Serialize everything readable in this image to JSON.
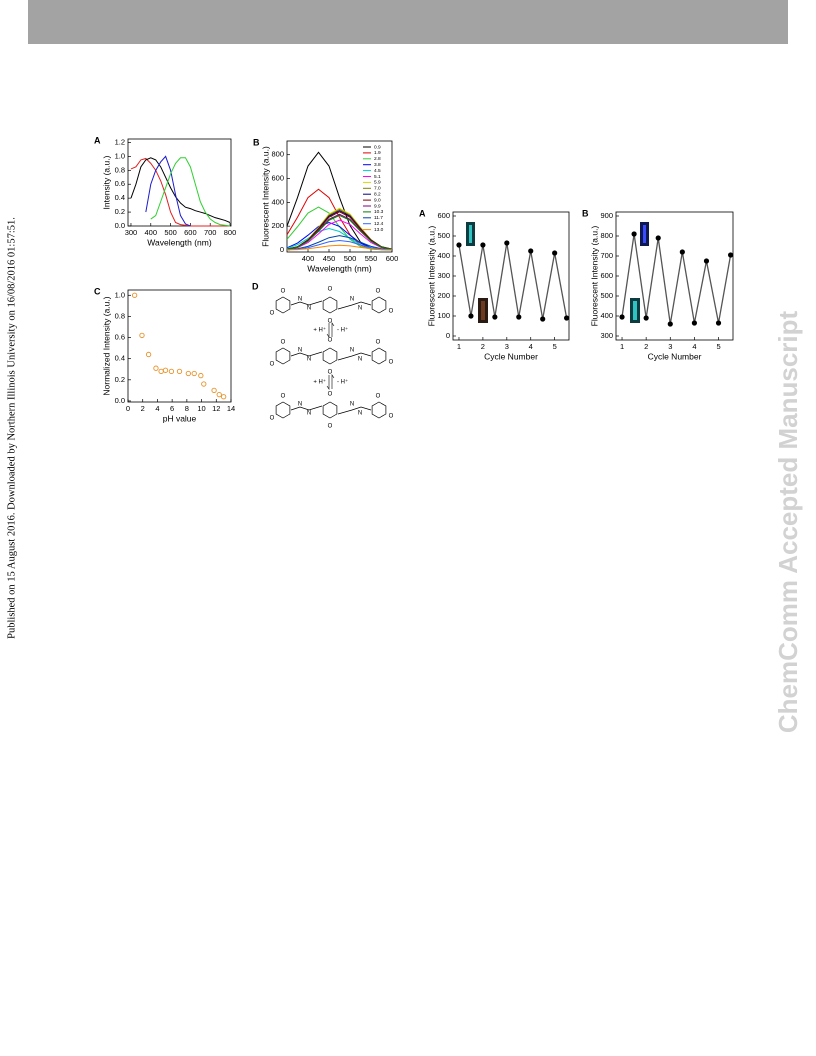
{
  "side_text": "Published on 15 August 2016. Downloaded by Northern Illinois University on 16/08/2016 01:57:51.",
  "watermark": "ChemComm Accepted Manuscript",
  "chart_data": [
    {
      "type": "line",
      "label": "A",
      "xlabel": "Wavelength (nm)",
      "ylabel": "Intensity (a.u.)",
      "xlim": [
        285,
        805
      ],
      "ylim": [
        0,
        1.25
      ],
      "xticks": [
        300,
        400,
        500,
        600,
        700,
        800
      ],
      "yticks": [
        {
          "value": 0,
          "label": "0.0"
        },
        0.2,
        0.4,
        0.6,
        0.8,
        {
          "value": 1,
          "label": "1.0"
        },
        1.2
      ],
      "x": [
        300,
        325,
        350,
        375,
        400,
        425,
        450,
        475,
        500,
        525,
        550,
        575,
        600,
        625,
        650,
        675,
        700,
        725,
        750,
        775,
        800
      ],
      "series": [
        {
          "color": "#e02020",
          "values": [
            0.82,
            0.85,
            0.95,
            0.97,
            0.9,
            0.8,
            0.65,
            0.45,
            0.2,
            0.05,
            0.02,
            0.01,
            0,
            0,
            0,
            0,
            0,
            0,
            0,
            0,
            0
          ]
        },
        {
          "color": "#000000",
          "values": [
            0.4,
            0.6,
            0.85,
            0.95,
            0.98,
            0.95,
            0.85,
            0.7,
            0.55,
            0.42,
            0.33,
            0.27,
            0.25,
            0.22,
            0.2,
            0.18,
            0.15,
            0.12,
            0.1,
            0.08,
            0.05
          ]
        },
        {
          "color": "#1a1ad0",
          "values": [
            null,
            null,
            null,
            0.2,
            0.6,
            0.8,
            0.92,
            1.0,
            0.8,
            0.45,
            0.15,
            0.03,
            0,
            null,
            null,
            null,
            null,
            null,
            null,
            null,
            null
          ]
        },
        {
          "color": "#30d030",
          "values": [
            null,
            null,
            null,
            null,
            0.1,
            0.15,
            0.35,
            0.55,
            0.75,
            0.9,
            0.98,
            0.98,
            0.85,
            0.6,
            0.35,
            0.2,
            0.1,
            0.05,
            0.02,
            0.01,
            0
          ]
        }
      ]
    },
    {
      "type": "line",
      "label": "B",
      "xlabel": "Wavelength (nm)",
      "ylabel": "Fluorescent Intensity (a.u.)",
      "xlim": [
        350,
        600
      ],
      "ylim": [
        -17,
        915
      ],
      "legend": "upper right",
      "xticks": [
        400,
        450,
        500,
        550,
        600
      ],
      "yticks": [
        0,
        200,
        400,
        600,
        800
      ],
      "x": [
        350,
        375,
        400,
        425,
        450,
        475,
        500,
        525,
        550,
        575,
        600
      ],
      "series": [
        {
          "name": "0.9",
          "color": "#000000",
          "values": [
            200,
            440,
            705,
            820,
            705,
            440,
            205,
            66,
            16,
            5,
            2
          ]
        },
        {
          "name": "1.9",
          "color": "#e00000",
          "values": [
            128,
            275,
            440,
            510,
            440,
            275,
            128,
            41,
            10,
            3,
            1
          ]
        },
        {
          "name": "2.8",
          "color": "#33cc33",
          "values": [
            90,
            195,
            310,
            360,
            310,
            195,
            90,
            29,
            7,
            2,
            1
          ]
        },
        {
          "name": "3.8",
          "color": "#0000ff",
          "values": [
            18,
            58,
            124,
            198,
            230,
            198,
            124,
            58,
            18,
            5,
            1
          ]
        },
        {
          "name": "4.5",
          "color": "#00cccc",
          "values": [
            14,
            45,
            97,
            155,
            180,
            155,
            97,
            45,
            14,
            4,
            1
          ]
        },
        {
          "name": "5.1",
          "color": "#ff00ff",
          "values": [
            5,
            20,
            62,
            135,
            215,
            250,
            215,
            135,
            62,
            20,
            5
          ]
        },
        {
          "name": "5.9",
          "color": "#d8d800",
          "values": [
            7,
            28,
            88,
            189,
            301,
            350,
            301,
            189,
            88,
            28,
            7
          ]
        },
        {
          "name": "7.0",
          "color": "#808000",
          "values": [
            7,
            27,
            85,
            184,
            292,
            340,
            292,
            184,
            85,
            27,
            7
          ]
        },
        {
          "name": "8.2",
          "color": "#000080",
          "values": [
            7,
            26,
            83,
            178,
            284,
            330,
            284,
            178,
            83,
            26,
            7
          ]
        },
        {
          "name": "9.0",
          "color": "#800000",
          "values": [
            6,
            26,
            80,
            173,
            275,
            320,
            275,
            173,
            80,
            26,
            6
          ]
        },
        {
          "name": "9.9",
          "color": "#800080",
          "values": [
            6,
            24,
            75,
            162,
            258,
            300,
            258,
            162,
            75,
            24,
            6
          ]
        },
        {
          "name": "10.3",
          "color": "#008000",
          "values": [
            6,
            23,
            73,
            157,
            249,
            290,
            249,
            157,
            73,
            23,
            6
          ]
        },
        {
          "name": "11.7",
          "color": "#0044aa",
          "values": [
            2,
            10,
            30,
            65,
            103,
            120,
            103,
            65,
            30,
            10,
            2
          ]
        },
        {
          "name": "12.4",
          "color": "#3366ff",
          "values": [
            2,
            6,
            20,
            43,
            69,
            80,
            69,
            43,
            20,
            6,
            2
          ]
        },
        {
          "name": "13.0",
          "color": "#ff8800",
          "values": [
            1,
            3,
            10,
            22,
            34,
            40,
            34,
            22,
            10,
            3,
            1
          ]
        }
      ]
    },
    {
      "type": "scatter",
      "label": "C",
      "xlabel": "pH value",
      "ylabel": "Normalized Intensity (a.u.)",
      "xlim": [
        0,
        14
      ],
      "ylim": [
        -0.01,
        1.05
      ],
      "xticks": [
        0,
        2,
        4,
        6,
        8,
        10,
        12,
        14
      ],
      "yticks": [
        {
          "value": 0,
          "label": "0.0"
        },
        0.2,
        0.4,
        0.6,
        0.8,
        {
          "value": 1,
          "label": "1.0"
        }
      ],
      "x": [
        0.9,
        1.9,
        2.8,
        3.8,
        4.5,
        5.1,
        5.9,
        7.0,
        8.2,
        9.0,
        9.9,
        10.3,
        11.7,
        12.4,
        13.0
      ],
      "series": [
        {
          "color": "#e8922a",
          "values": [
            1.0,
            0.62,
            0.44,
            0.31,
            0.28,
            0.29,
            0.28,
            0.28,
            0.26,
            0.26,
            0.24,
            0.16,
            0.1,
            0.06,
            0.04
          ]
        }
      ]
    },
    {
      "type": "line",
      "label": "A",
      "xlabel": "Cycle Number",
      "ylabel": "Fluorescent Intensity (a.u.)",
      "xlim": [
        0.75,
        5.6
      ],
      "ylim": [
        -20,
        620
      ],
      "markers": true,
      "xticks": [
        1,
        2,
        3,
        4,
        5
      ],
      "yticks": [
        0,
        100,
        200,
        300,
        400,
        500,
        600
      ],
      "x": [
        1,
        1.5,
        2,
        2.5,
        3,
        3.5,
        4,
        4.5,
        5,
        5.5
      ],
      "series": [
        {
          "color": "#555555",
          "values": [
            455,
            100,
            455,
            95,
            465,
            95,
            425,
            85,
            415,
            90
          ]
        }
      ]
    },
    {
      "type": "line",
      "label": "B",
      "xlabel": "Cycle Number",
      "ylabel": "Fluorescent Intensity (a.u.)",
      "xlim": [
        0.75,
        5.6
      ],
      "ylim": [
        280,
        920
      ],
      "markers": true,
      "xticks": [
        1,
        2,
        3,
        4,
        5
      ],
      "yticks": [
        300,
        400,
        500,
        600,
        700,
        800,
        900
      ],
      "x": [
        1,
        1.5,
        2,
        2.5,
        3,
        3.5,
        4,
        4.5,
        5,
        5.5
      ],
      "series": [
        {
          "color": "#555555",
          "values": [
            395,
            810,
            390,
            790,
            360,
            720,
            365,
            675,
            365,
            705
          ]
        }
      ]
    }
  ],
  "scheme": {
    "label": "D",
    "structures": [
      {
        "atoms": [
          "O",
          "O",
          "N",
          "N",
          "O",
          "O",
          "N",
          "N",
          "O",
          "O"
        ]
      },
      {
        "atoms": [
          "O",
          "O",
          "N",
          "N",
          "O",
          "O",
          "N",
          "N",
          "O",
          "O"
        ]
      },
      {
        "atoms": [
          "O",
          "O",
          "N",
          "N",
          "O",
          "O",
          "N",
          "N",
          "O",
          "O"
        ]
      }
    ],
    "arrows": [
      {
        "forward": "+ H⁺",
        "reverse": "- H⁺"
      },
      {
        "forward": "+ H⁺",
        "reverse": "- H⁺"
      }
    ]
  }
}
